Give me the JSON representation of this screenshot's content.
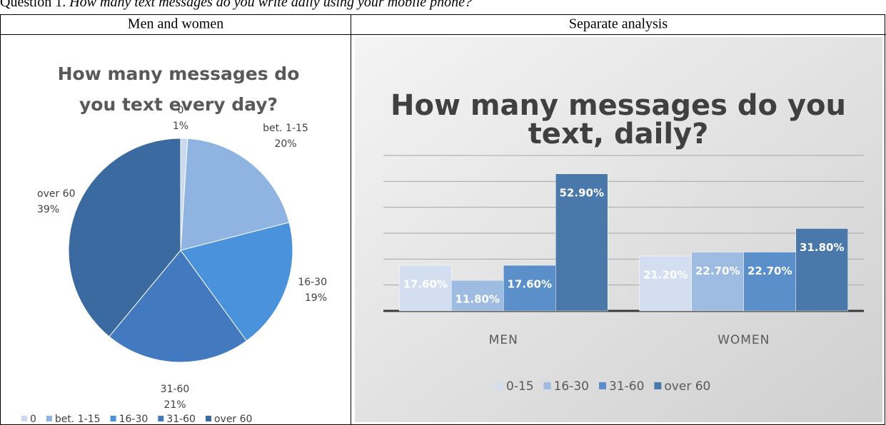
{
  "question_number": "Question 1.",
  "question_text": "How many text messages do you write daily using your mobile phone?",
  "table": {
    "headers": [
      "Men and women",
      "Separate analysis"
    ]
  },
  "chart_data": [
    {
      "type": "pie",
      "title": "How many messages do you text every day?",
      "categories": [
        "0",
        "bet. 1-15",
        "16-30",
        "31-60",
        "over 60"
      ],
      "values": [
        1,
        20,
        19,
        21,
        39
      ],
      "value_labels": [
        "1%",
        "20%",
        "19%",
        "21%",
        "39%"
      ],
      "colors": [
        "#c9d9ef",
        "#8fb4e2",
        "#4a92dc",
        "#4279bf",
        "#3b6aa1"
      ],
      "legend": "bottom"
    },
    {
      "type": "bar",
      "title": "How many messages do you text, daily?",
      "categories": [
        "MEN",
        "WOMEN"
      ],
      "series": [
        {
          "name": "0-15",
          "color": "#d3def0",
          "values": [
            17.6,
            21.2
          ],
          "value_labels": [
            "17.60%",
            "21.20%"
          ]
        },
        {
          "name": "16-30",
          "color": "#9ebbe2",
          "values": [
            11.8,
            22.7
          ],
          "value_labels": [
            "11.80%",
            "22.70%"
          ]
        },
        {
          "name": "31-60",
          "color": "#5b8fc9",
          "values": [
            17.6,
            22.7
          ],
          "value_labels": [
            "17.60%",
            "22.70%"
          ]
        },
        {
          "name": "over 60",
          "color": "#4a78ab",
          "values": [
            52.9,
            31.8
          ],
          "value_labels": [
            "52.90%",
            "31.80%"
          ]
        }
      ],
      "ylim": [
        0,
        60
      ],
      "yticks": [
        0,
        10,
        20,
        30,
        40,
        50,
        60
      ],
      "grid": true,
      "legend": "bottom"
    }
  ]
}
